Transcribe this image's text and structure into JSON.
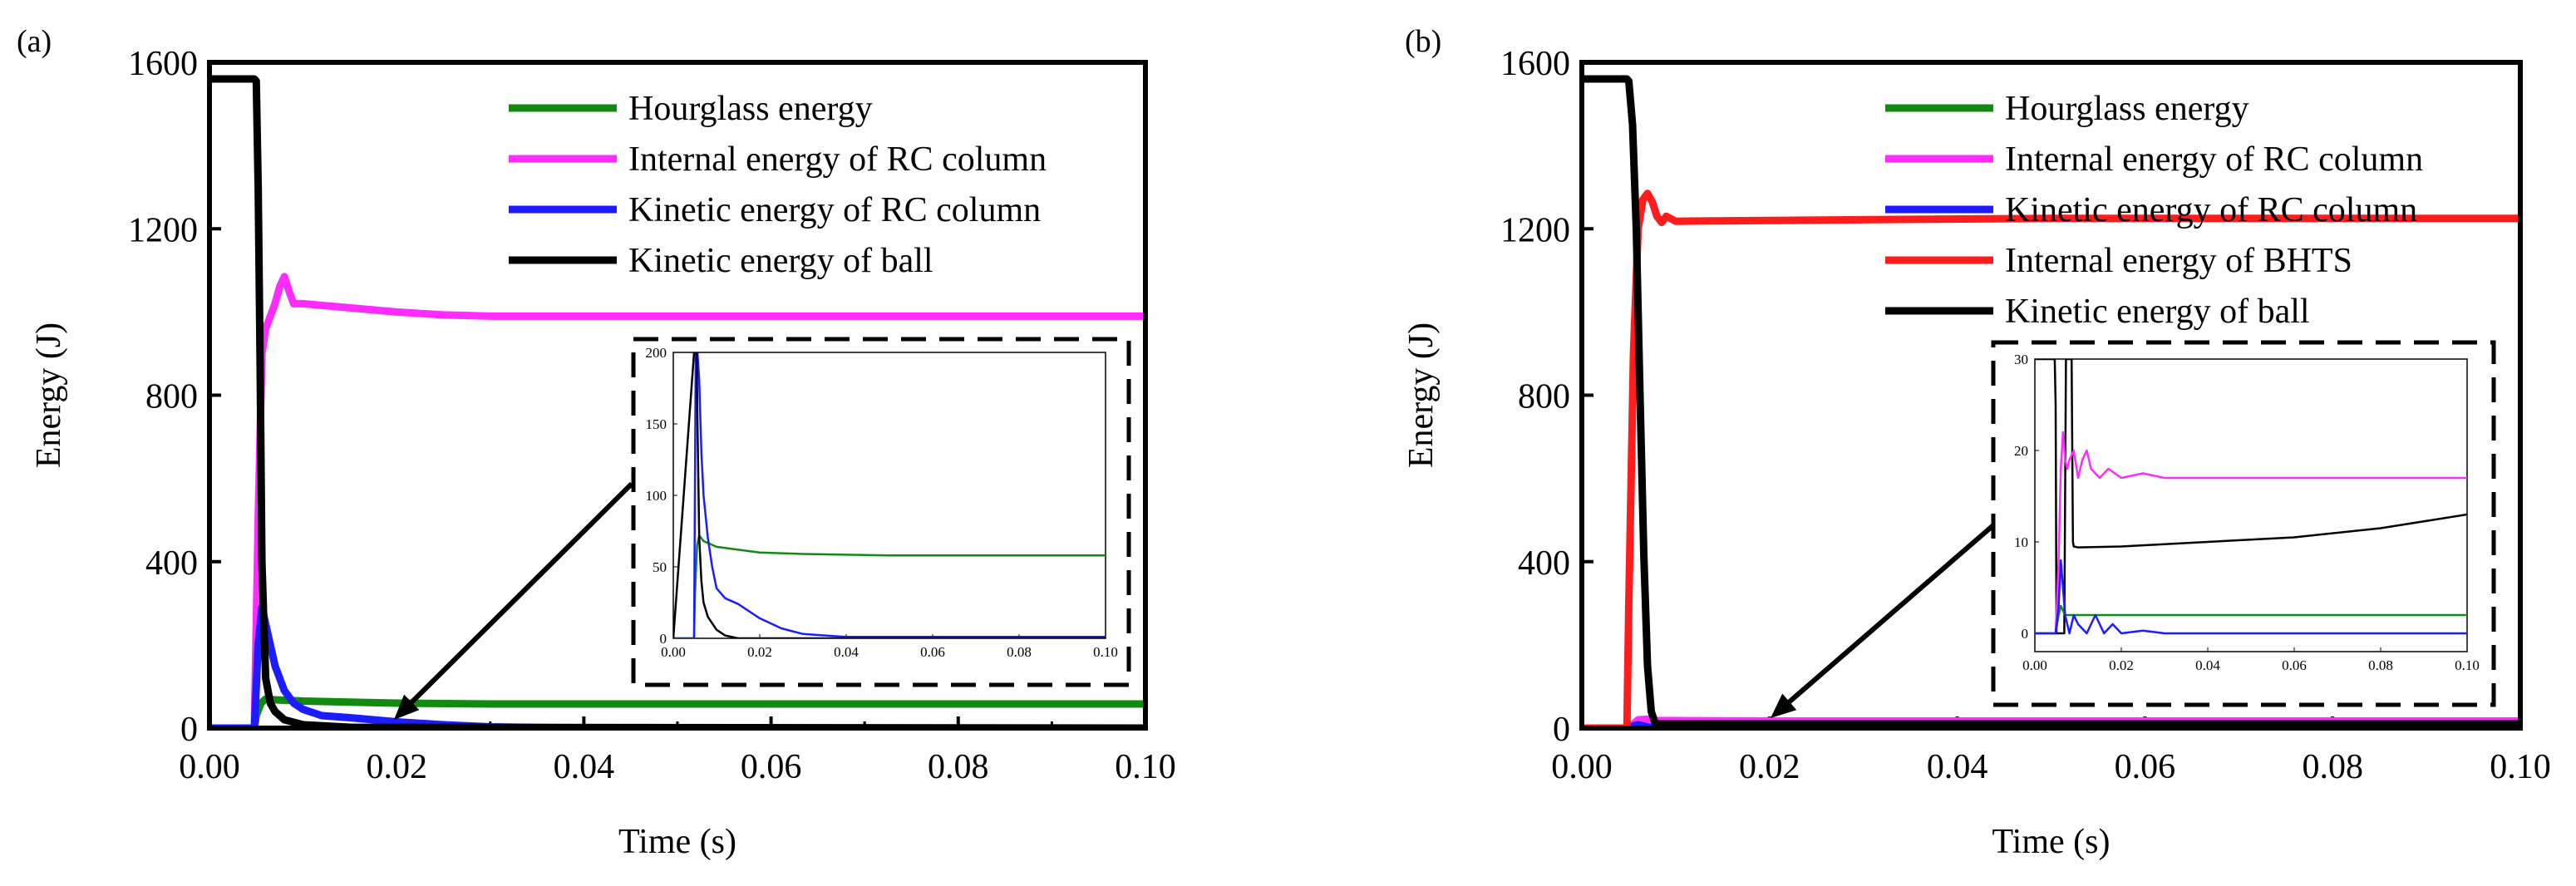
{
  "figure": {
    "panels": [
      "(a)",
      "(b)"
    ]
  },
  "colors": {
    "hourglass": "#128a12",
    "internal_rc": "#ff2cff",
    "kinetic_rc": "#1c1cff",
    "internal_bhts": "#ff1c1c",
    "kinetic_ball": "#000000"
  },
  "chart_data": [
    {
      "panel_label": "(a)",
      "type": "line",
      "title": "",
      "xlabel": "Time (s)",
      "ylabel": "Energy (J)",
      "xlim": [
        0.0,
        0.1
      ],
      "ylim": [
        0,
        1600
      ],
      "xticks": [
        "0.00",
        "0.02",
        "0.04",
        "0.06",
        "0.08",
        "0.10"
      ],
      "yticks": [
        "0",
        "400",
        "800",
        "1200",
        "1600"
      ],
      "legend_position": "top-right",
      "series": [
        {
          "name": "Hourglass energy",
          "color_key": "hourglass",
          "x": [
            0,
            0.0048,
            0.005,
            0.0055,
            0.006,
            0.007,
            0.01,
            0.02,
            0.03,
            0.05,
            0.1
          ],
          "y": [
            0,
            0,
            30,
            60,
            70,
            68,
            65,
            60,
            58,
            58,
            58
          ]
        },
        {
          "name": "Internal energy of RC column",
          "color_key": "internal_rc",
          "x": [
            0,
            0.0048,
            0.0052,
            0.0056,
            0.006,
            0.0065,
            0.007,
            0.0075,
            0.008,
            0.0085,
            0.009,
            0.01,
            0.015,
            0.02,
            0.025,
            0.03,
            0.05,
            0.1
          ],
          "y": [
            0,
            0,
            500,
            900,
            960,
            990,
            1020,
            1060,
            1085,
            1050,
            1020,
            1020,
            1010,
            1000,
            993,
            990,
            990,
            990
          ]
        },
        {
          "name": "Kinetic energy of RC column",
          "color_key": "kinetic_rc",
          "x": [
            0,
            0.0048,
            0.0052,
            0.0056,
            0.006,
            0.0065,
            0.007,
            0.008,
            0.009,
            0.01,
            0.012,
            0.015,
            0.02,
            0.025,
            0.03,
            0.04,
            0.1
          ],
          "y": [
            0,
            0,
            200,
            290,
            250,
            200,
            150,
            90,
            60,
            45,
            30,
            25,
            15,
            8,
            3,
            0,
            0
          ]
        },
        {
          "name": "Kinetic energy of ball",
          "color_key": "kinetic_ball",
          "x": [
            0,
            0.0048,
            0.005,
            0.0052,
            0.0054,
            0.0056,
            0.006,
            0.0065,
            0.007,
            0.008,
            0.01,
            0.015,
            0.1
          ],
          "y": [
            1560,
            1560,
            1555,
            1300,
            900,
            400,
            120,
            60,
            40,
            20,
            8,
            2,
            0
          ]
        }
      ],
      "inset": {
        "xlim": [
          0.0,
          0.1
        ],
        "ylim": [
          0,
          200
        ],
        "xticks": [
          "0.00",
          "0.02",
          "0.04",
          "0.06",
          "0.08",
          "0.10"
        ],
        "yticks": [
          "0",
          "50",
          "100",
          "150",
          "200"
        ],
        "series": [
          {
            "color_key": "hourglass",
            "x": [
              0,
              0.0048,
              0.005,
              0.0055,
              0.006,
              0.007,
              0.01,
              0.015,
              0.02,
              0.03,
              0.05,
              0.1
            ],
            "y": [
              0,
              0,
              30,
              65,
              72,
              68,
              64,
              62,
              60,
              59,
              58,
              58
            ]
          },
          {
            "color_key": "kinetic_rc",
            "x": [
              0,
              0.0048,
              0.0052,
              0.0056,
              0.006,
              0.0065,
              0.007,
              0.008,
              0.009,
              0.01,
              0.012,
              0.015,
              0.02,
              0.025,
              0.03,
              0.04,
              0.1
            ],
            "y": [
              0,
              0,
              200,
              200,
              180,
              130,
              100,
              70,
              50,
              35,
              28,
              24,
              14,
              7,
              3,
              1,
              1
            ]
          },
          {
            "color_key": "kinetic_ball",
            "x": [
              0,
              0.0048,
              0.005,
              0.0052,
              0.0054,
              0.0056,
              0.006,
              0.0065,
              0.007,
              0.008,
              0.01,
              0.012,
              0.015,
              0.1
            ],
            "y": [
              0,
              200,
              200,
              200,
              200,
              150,
              70,
              40,
              25,
              15,
              6,
              2,
              0,
              0
            ]
          }
        ]
      }
    },
    {
      "panel_label": "(b)",
      "type": "line",
      "title": "",
      "xlabel": "Time (s)",
      "ylabel": "Energy (J)",
      "xlim": [
        0.0,
        0.1
      ],
      "ylim": [
        0,
        1600
      ],
      "xticks": [
        "0.00",
        "0.02",
        "0.04",
        "0.06",
        "0.08",
        "0.10"
      ],
      "yticks": [
        "0",
        "400",
        "800",
        "1200",
        "1600"
      ],
      "legend_position": "top-right",
      "series": [
        {
          "name": "Hourglass energy",
          "color_key": "hourglass",
          "x": [
            0,
            0.0048,
            0.006,
            0.01,
            0.1
          ],
          "y": [
            0,
            0,
            2,
            2,
            2
          ]
        },
        {
          "name": "Internal energy of RC column",
          "color_key": "internal_rc",
          "x": [
            0,
            0.0048,
            0.0055,
            0.006,
            0.0075,
            0.008,
            0.01,
            0.02,
            0.1
          ],
          "y": [
            0,
            0,
            10,
            20,
            22,
            18,
            18,
            17,
            17
          ]
        },
        {
          "name": "Kinetic energy of RC column",
          "color_key": "kinetic_rc",
          "x": [
            0,
            0.0048,
            0.0055,
            0.006,
            0.007,
            0.008,
            0.01,
            0.02,
            0.1
          ],
          "y": [
            0,
            0,
            5,
            8,
            3,
            1,
            1,
            0,
            0
          ]
        },
        {
          "name": "Internal energy of BHTS",
          "color_key": "internal_bhts",
          "x": [
            0,
            0.0048,
            0.005,
            0.0055,
            0.006,
            0.0065,
            0.007,
            0.0075,
            0.008,
            0.0085,
            0.009,
            0.01,
            0.02,
            0.05,
            0.1
          ],
          "y": [
            0,
            0,
            300,
            900,
            1200,
            1270,
            1285,
            1265,
            1230,
            1215,
            1230,
            1218,
            1220,
            1225,
            1225
          ]
        },
        {
          "name": "Kinetic energy of ball",
          "color_key": "kinetic_ball",
          "x": [
            0,
            0.0048,
            0.005,
            0.0054,
            0.0058,
            0.0062,
            0.0066,
            0.007,
            0.0074,
            0.0078,
            0.008,
            0.1
          ],
          "y": [
            1560,
            1560,
            1555,
            1450,
            1200,
            800,
            420,
            150,
            40,
            12,
            10,
            10
          ]
        }
      ],
      "inset": {
        "xlim": [
          0.0,
          0.1
        ],
        "ylim": [
          -2,
          30
        ],
        "xticks": [
          "0.00",
          "0.02",
          "0.04",
          "0.06",
          "0.08",
          "0.10"
        ],
        "yticks": [
          "0",
          "10",
          "20",
          "30"
        ],
        "series": [
          {
            "color_key": "kinetic_ball",
            "x": [
              0,
              0.0046,
              0.0048,
              0.005,
              0.0055,
              0.006,
              0.0068,
              0.0072,
              0.0075,
              0.0085,
              0.0088,
              0.009,
              0.01,
              0.02,
              0.04,
              0.06,
              0.08,
              0.1
            ],
            "y": [
              30,
              30,
              25,
              0,
              0,
              0,
              0,
              30,
              30,
              30,
              10,
              9.5,
              9.4,
              9.5,
              10,
              10.5,
              11.5,
              13
            ]
          },
          {
            "color_key": "internal_rc",
            "x": [
              0,
              0.0048,
              0.0055,
              0.006,
              0.0065,
              0.007,
              0.0075,
              0.008,
              0.009,
              0.01,
              0.011,
              0.012,
              0.013,
              0.015,
              0.017,
              0.02,
              0.025,
              0.03,
              0.04,
              0.1
            ],
            "y": [
              0,
              0,
              8,
              18,
              22,
              19,
              18,
              19,
              20,
              17,
              19,
              20,
              18,
              17,
              18,
              17,
              17.5,
              17,
              17,
              17
            ]
          },
          {
            "color_key": "hourglass",
            "x": [
              0,
              0.0048,
              0.0055,
              0.006,
              0.007,
              0.008,
              0.01,
              0.1
            ],
            "y": [
              0,
              0,
              2,
              3,
              2,
              2,
              2,
              2
            ]
          },
          {
            "color_key": "kinetic_rc",
            "x": [
              0,
              0.0048,
              0.0055,
              0.006,
              0.0065,
              0.007,
              0.0075,
              0.008,
              0.009,
              0.01,
              0.012,
              0.014,
              0.016,
              0.018,
              0.02,
              0.025,
              0.03,
              0.04,
              0.1
            ],
            "y": [
              0,
              0,
              3,
              8,
              5,
              2,
              1,
              0,
              2,
              1,
              0,
              2,
              0,
              1,
              0,
              0.3,
              0,
              0,
              0
            ]
          }
        ]
      }
    }
  ]
}
